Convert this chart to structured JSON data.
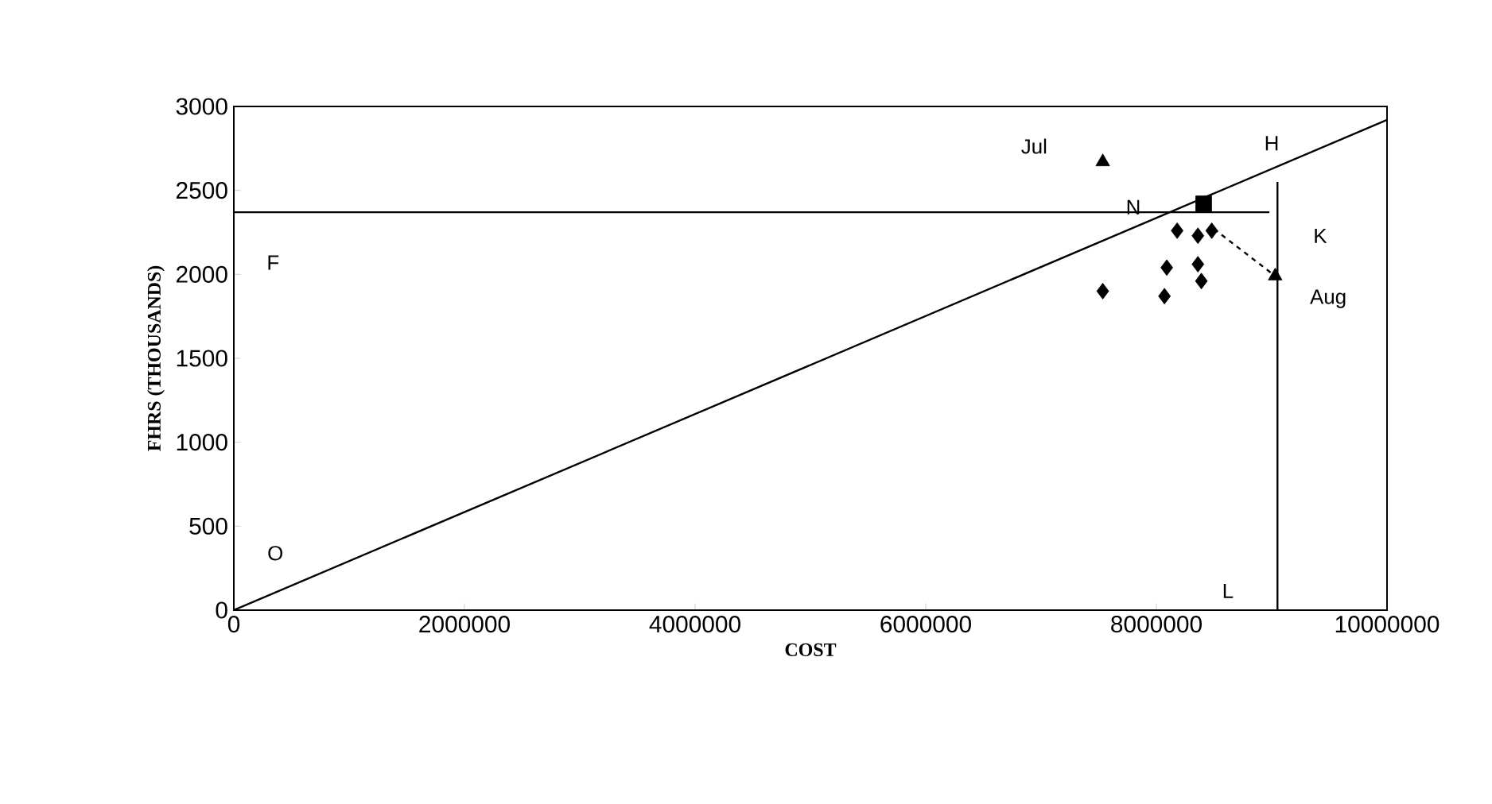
{
  "chart_data": {
    "type": "scatter",
    "xlabel": "COST",
    "ylabel": "FHRS (THOUSANDS)",
    "xlim": [
      0,
      10000000
    ],
    "ylim": [
      0,
      3000
    ],
    "xticks": [
      0,
      2000000,
      4000000,
      6000000,
      8000000,
      10000000
    ],
    "yticks": [
      0,
      500,
      1000,
      1500,
      2000,
      2500,
      3000
    ],
    "series": [
      {
        "type": "line",
        "color": "#000000",
        "marker": "none",
        "line_style": "solid",
        "x": [
          0,
          10000000
        ],
        "values": [
          0,
          2920
        ]
      },
      {
        "type": "line",
        "color": "#000000",
        "marker": "none",
        "line_style": "solid",
        "x": [
          0,
          8980000
        ],
        "values": [
          2370,
          2370
        ]
      },
      {
        "type": "line",
        "color": "#000000",
        "marker": "none",
        "line_style": "solid",
        "x": [
          9050000,
          9050000
        ],
        "values": [
          0,
          2550
        ]
      },
      {
        "type": "line",
        "color": "#000000",
        "marker": "none",
        "line_style": "dashed",
        "x": [
          8500000,
          9030000
        ],
        "values": [
          2270,
          1990
        ]
      },
      {
        "color": "#000000",
        "marker": "diamond",
        "x": [
          7535000,
          8070000,
          8090000,
          8360000,
          8390000,
          8180000,
          8360000,
          8480000
        ],
        "values": [
          1900,
          1870,
          2040,
          2060,
          1960,
          2260,
          2230,
          2260
        ]
      },
      {
        "color": "#000000",
        "marker": "square",
        "x": [
          8410000
        ],
        "values": [
          2420
        ]
      },
      {
        "color": "#000000",
        "marker": "triangle",
        "x": [
          7535000,
          9030000
        ],
        "values": [
          2670,
          1990
        ]
      }
    ],
    "annotations": [
      "Jul",
      "H",
      "N",
      "K",
      "Aug",
      "F",
      "O",
      "L"
    ]
  }
}
